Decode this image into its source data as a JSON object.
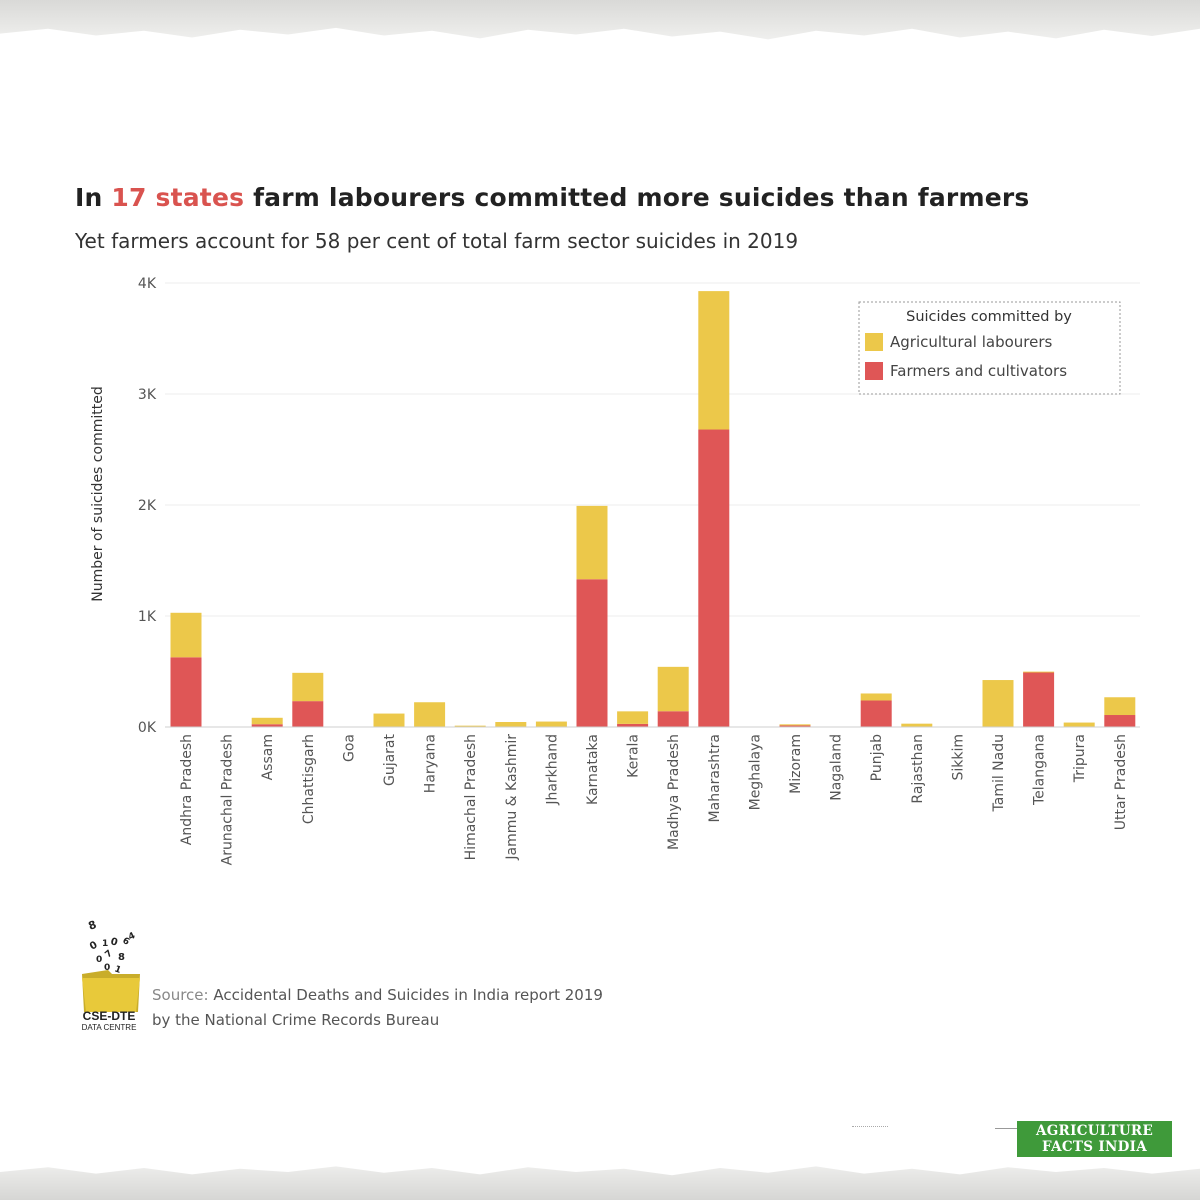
{
  "header": {
    "title_before": "In ",
    "title_highlight": "17 states",
    "title_after": " farm labourers committed more suicides than farmers",
    "subtitle": "Yet farmers account for 58 per cent of total farm sector suicides in 2019"
  },
  "chart_data": {
    "type": "bar",
    "stacked": true,
    "ylabel": "Number of suicides committed",
    "xlabel": "",
    "ylim": [
      0,
      4000
    ],
    "yticks": [
      0,
      1000,
      2000,
      3000,
      4000
    ],
    "ytick_labels": [
      "0K",
      "1K",
      "2K",
      "3K",
      "4K"
    ],
    "grid": "horizontal",
    "legend_position": "top-right",
    "legend_title": "Suicides committed by",
    "categories": [
      "Andhra Pradesh",
      "Arunachal Pradesh",
      "Assam",
      "Chhattisgarh",
      "Goa",
      "Gujarat",
      "Haryana",
      "Himachal Pradesh",
      "Jammu & Kashmir",
      "Jharkhand",
      "Karnataka",
      "Kerala",
      "Madhya Pradesh",
      "Maharashtra",
      "Meghalaya",
      "Mizoram",
      "Nagaland",
      "Punjab",
      "Rajasthan",
      "Sikkim",
      "Tamil Nadu",
      "Telangana",
      "Tripura",
      "Uttar Pradesh"
    ],
    "series": [
      {
        "name": "Farmers and cultivators",
        "color": "#df5656",
        "values": [
          628,
          0,
          25,
          233,
          0,
          0,
          0,
          0,
          0,
          0,
          1331,
          28,
          142,
          2680,
          0,
          14,
          0,
          239,
          0,
          0,
          0,
          491,
          0,
          108
        ]
      },
      {
        "name": "Agricultural labourers",
        "color": "#ecc84a",
        "values": [
          401,
          0,
          58,
          255,
          0,
          121,
          223,
          12,
          45,
          49,
          661,
          113,
          400,
          1247,
          0,
          10,
          0,
          63,
          30,
          0,
          423,
          8,
          40,
          160
        ]
      }
    ]
  },
  "source": {
    "label": "Source:",
    "line1": "Accidental Deaths and Suicides in India report 2019",
    "line2": "by the National Crime Records Bureau"
  },
  "logo": {
    "name": "CSE-DTE",
    "sub": "DATA CENTRE"
  },
  "brand": {
    "line1": "AGRICULTURE",
    "line2": "FACTS INDIA"
  }
}
